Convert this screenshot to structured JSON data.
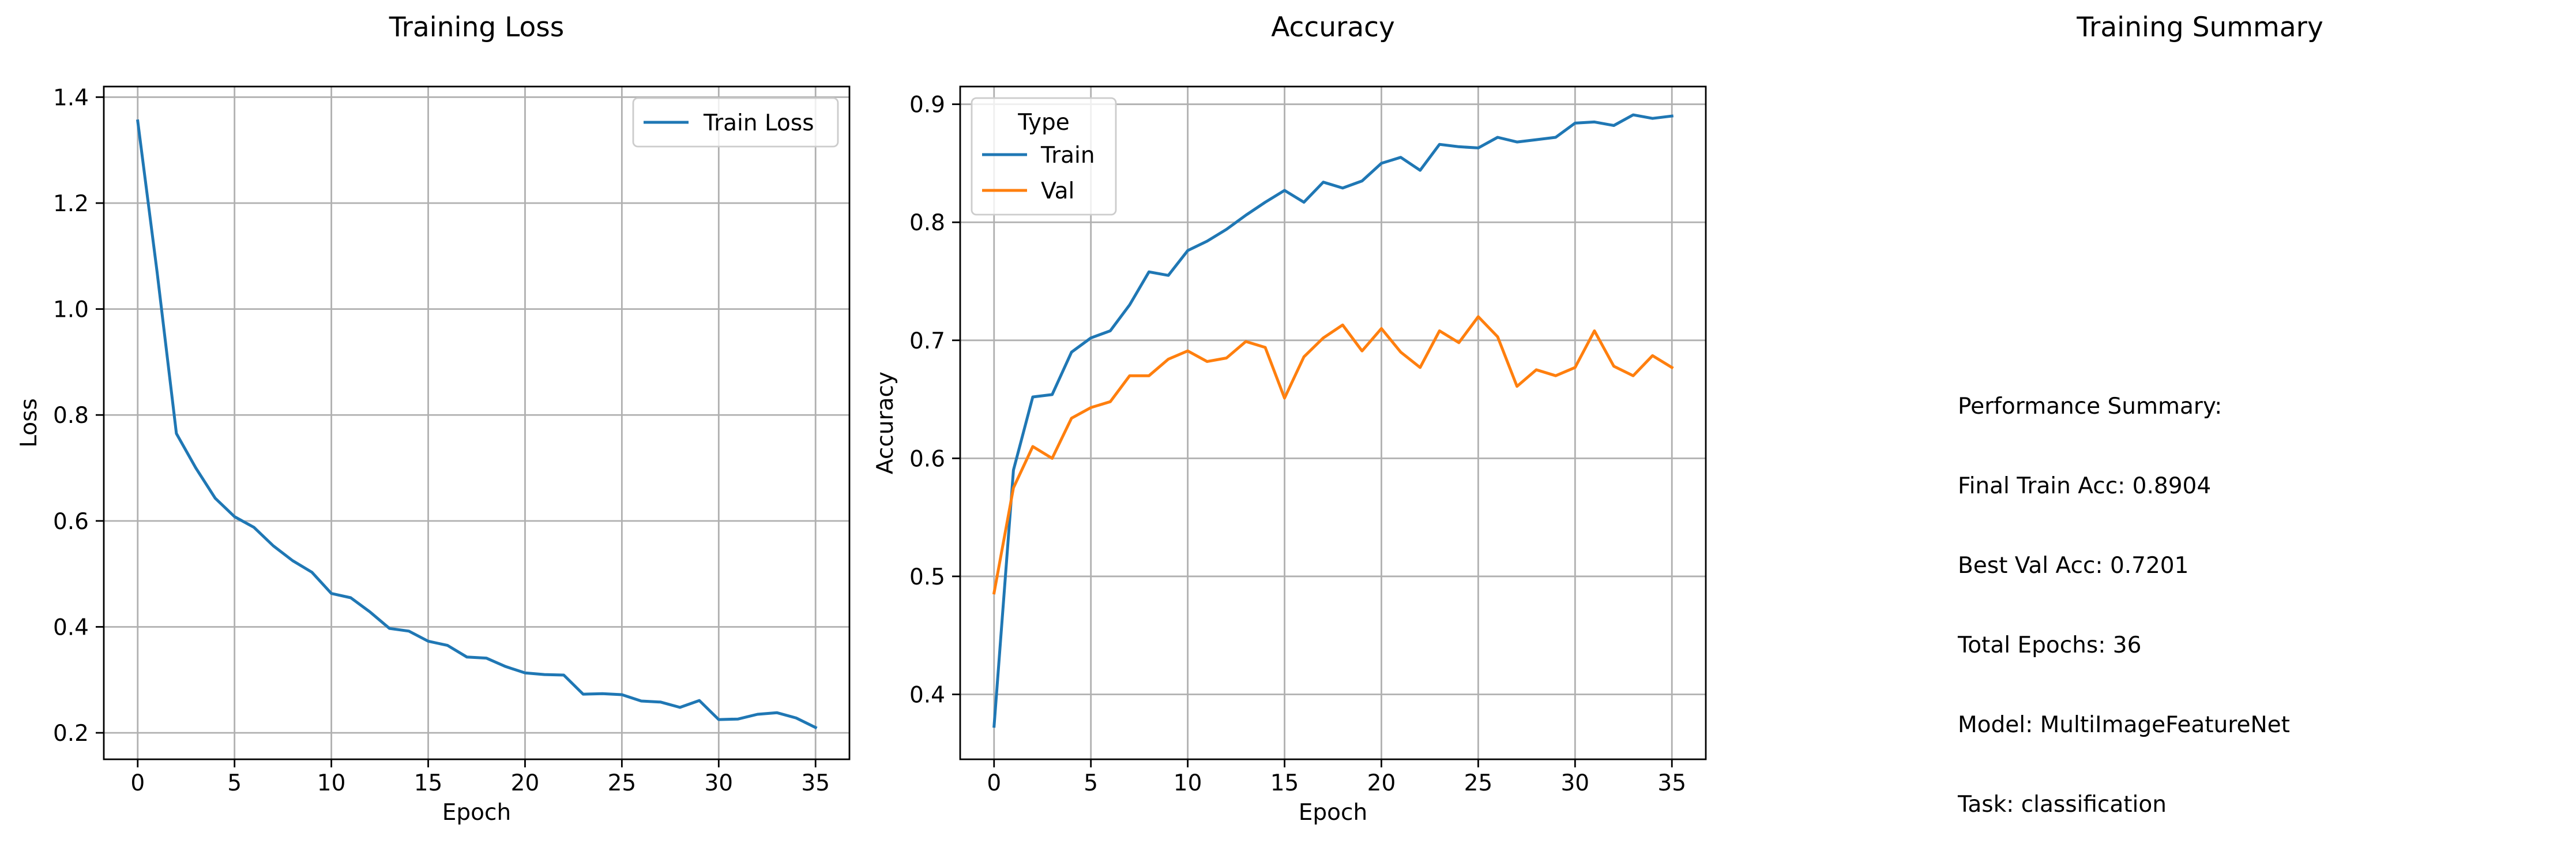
{
  "chart_data": [
    {
      "type": "line",
      "title": "Training Loss",
      "xlabel": "Epoch",
      "ylabel": "Loss",
      "xlim": [
        -1.75,
        36.75
      ],
      "ylim": [
        0.15,
        1.42
      ],
      "xticks": [
        0,
        5,
        10,
        15,
        20,
        25,
        30,
        35
      ],
      "yticks": [
        0.2,
        0.4,
        0.6,
        0.8,
        1.0,
        1.2,
        1.4
      ],
      "ytick_labels": [
        "0.2",
        "0.4",
        "0.6",
        "0.8",
        "1.0",
        "1.2",
        "1.4"
      ],
      "grid": true,
      "legend": "upper right",
      "x": [
        0,
        1,
        2,
        3,
        4,
        5,
        6,
        7,
        8,
        9,
        10,
        11,
        12,
        13,
        14,
        15,
        16,
        17,
        18,
        19,
        20,
        21,
        22,
        23,
        24,
        25,
        26,
        27,
        28,
        29,
        30,
        31,
        32,
        33,
        34,
        35
      ],
      "series": [
        {
          "name": "Train Loss",
          "color": "#1f77b4",
          "values": [
            1.355,
            1.07,
            0.765,
            0.7,
            0.643,
            0.608,
            0.588,
            0.553,
            0.525,
            0.503,
            0.463,
            0.455,
            0.428,
            0.397,
            0.392,
            0.373,
            0.365,
            0.343,
            0.341,
            0.325,
            0.313,
            0.31,
            0.309,
            0.273,
            0.274,
            0.272,
            0.26,
            0.258,
            0.248,
            0.261,
            0.225,
            0.226,
            0.235,
            0.238,
            0.228,
            0.21
          ]
        }
      ]
    },
    {
      "type": "line",
      "title": "Accuracy",
      "xlabel": "Epoch",
      "ylabel": "Accuracy",
      "xlim": [
        -1.75,
        36.75
      ],
      "ylim": [
        0.345,
        0.915
      ],
      "xticks": [
        0,
        5,
        10,
        15,
        20,
        25,
        30,
        35
      ],
      "yticks": [
        0.4,
        0.5,
        0.6,
        0.7,
        0.8,
        0.9
      ],
      "ytick_labels": [
        "0.4",
        "0.5",
        "0.6",
        "0.7",
        "0.8",
        "0.9"
      ],
      "grid": true,
      "legend": "upper left",
      "legend_title": "Type",
      "x": [
        0,
        1,
        2,
        3,
        4,
        5,
        6,
        7,
        8,
        9,
        10,
        11,
        12,
        13,
        14,
        15,
        16,
        17,
        18,
        19,
        20,
        21,
        22,
        23,
        24,
        25,
        26,
        27,
        28,
        29,
        30,
        31,
        32,
        33,
        34,
        35
      ],
      "series": [
        {
          "name": "Train",
          "color": "#1f77b4",
          "values": [
            0.373,
            0.59,
            0.652,
            0.654,
            0.69,
            0.702,
            0.708,
            0.73,
            0.758,
            0.755,
            0.776,
            0.784,
            0.794,
            0.806,
            0.817,
            0.827,
            0.817,
            0.834,
            0.829,
            0.835,
            0.85,
            0.855,
            0.844,
            0.866,
            0.864,
            0.863,
            0.872,
            0.868,
            0.87,
            0.872,
            0.884,
            0.885,
            0.882,
            0.891,
            0.888,
            0.89
          ]
        },
        {
          "name": "Val",
          "color": "#ff7f0e",
          "values": [
            0.486,
            0.575,
            0.61,
            0.6,
            0.634,
            0.643,
            0.648,
            0.67,
            0.67,
            0.684,
            0.691,
            0.682,
            0.685,
            0.699,
            0.694,
            0.651,
            0.686,
            0.702,
            0.713,
            0.691,
            0.71,
            0.69,
            0.677,
            0.708,
            0.698,
            0.72,
            0.703,
            0.661,
            0.675,
            0.67,
            0.677,
            0.708,
            0.678,
            0.67,
            0.687,
            0.677
          ]
        }
      ]
    }
  ],
  "summary": {
    "title": "Training Summary",
    "lines": [
      "Performance Summary:",
      "Final Train Acc: 0.8904",
      "Best Val Acc: 0.7201",
      "Total Epochs: 36",
      "Model: MultiImageFeatureNet",
      "Task: classification"
    ]
  }
}
